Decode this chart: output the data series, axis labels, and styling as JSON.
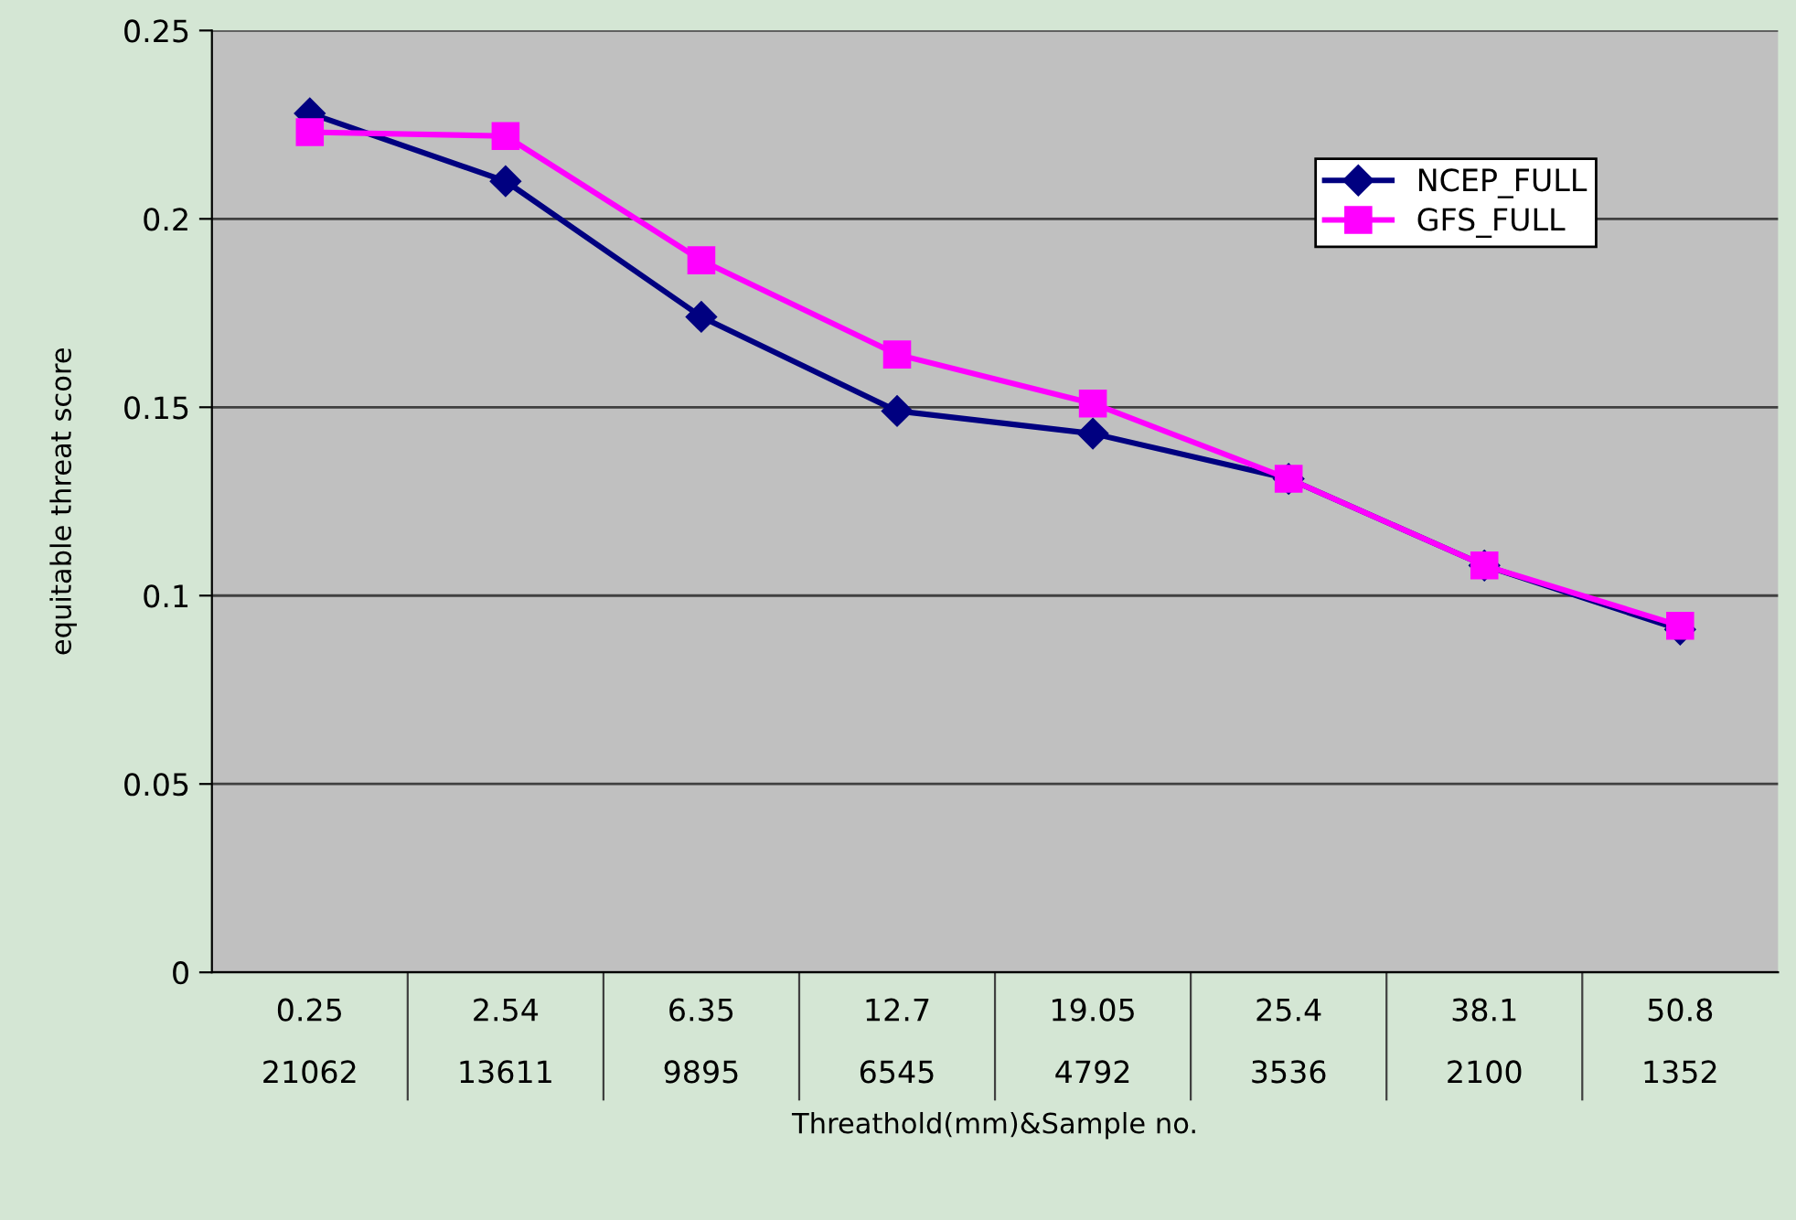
{
  "chart_data": {
    "type": "line",
    "xlabel": "Threathold(mm)&Sample no.",
    "ylabel": "equitable threat score",
    "categories": [
      "0.25\n21062",
      "2.54\n13611",
      "6.35\n9895",
      "12.7\n6545",
      "19.05\n4792",
      "25.4\n3536",
      "38.1\n2100",
      "50.8\n1352"
    ],
    "series": [
      {
        "name": "NCEP_FULL",
        "color": "#000080",
        "marker": "diamond",
        "values": [
          0.228,
          0.21,
          0.174,
          0.149,
          0.143,
          0.131,
          0.108,
          0.091
        ]
      },
      {
        "name": "GFS_FULL",
        "color": "#ff00ff",
        "marker": "square",
        "values": [
          0.223,
          0.222,
          0.189,
          0.164,
          0.151,
          0.131,
          0.108,
          0.092
        ]
      }
    ],
    "ylim": [
      0,
      0.25
    ],
    "yticks": [
      0,
      0.05,
      0.1,
      0.15,
      0.2,
      0.25
    ],
    "grid": "y",
    "legend": "top right",
    "line_style": "solid"
  }
}
